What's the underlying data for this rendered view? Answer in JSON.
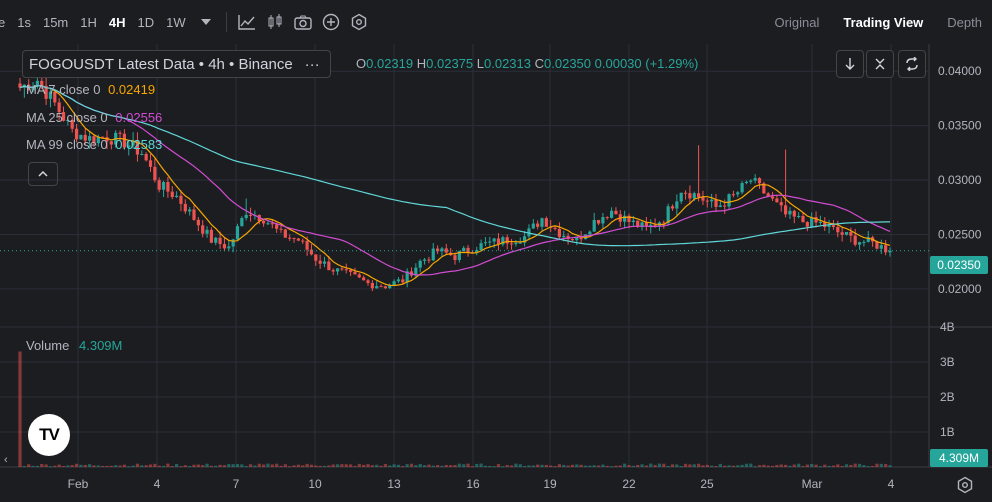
{
  "toolbar": {
    "timeframes": [
      "1s",
      "15m",
      "1H",
      "4H",
      "1D",
      "1W"
    ],
    "active_timeframe": "4H",
    "view_tabs": [
      "Original",
      "Trading View",
      "Depth"
    ],
    "active_view": "Trading View"
  },
  "legend": {
    "symbol_title": "FOGOUSDT Latest Data • 4h • Binance",
    "more_label": "···",
    "ohlc": {
      "open_label": "O",
      "open": "0.02319",
      "high_label": "H",
      "high": "0.02375",
      "low_label": "L",
      "low": "0.02313",
      "close_label": "C",
      "close": "0.02350",
      "change": "0.00030 (+1.29%)"
    },
    "ma7_label": "MA 7 close 0",
    "ma7_value": "0.02419",
    "ma25_label": "MA 25 close 0",
    "ma25_value": "0.02556",
    "ma99_label": "MA 99 close 0",
    "ma99_value": "0.02583",
    "volume_label": "Volume",
    "volume_value": "4.309M"
  },
  "price_tag": "0.02350",
  "volume_tag": "4.309M",
  "logo_text": "TV",
  "colors": {
    "background": "#1c1d21",
    "up": "#26a69a",
    "down": "#ef5350",
    "ma7": "#f7a600",
    "ma25": "#d24cd2",
    "ma99": "#5fd7d7",
    "grid": "#2a2e39"
  },
  "chart_data": {
    "type": "candlestick",
    "title": "FOGOUSDT Latest Data • 4h • Binance",
    "price_axis": {
      "ticks": [
        "0.04000",
        "0.03500",
        "0.03000",
        "0.02500",
        "0.02000"
      ],
      "range": [
        0.0165,
        0.0425
      ]
    },
    "volume_axis": {
      "ticks": [
        "4B",
        "3B",
        "2B",
        "1B"
      ],
      "range": [
        0,
        4
      ]
    },
    "x_ticks": [
      "Feb",
      "4",
      "7",
      "10",
      "13",
      "16",
      "19",
      "22",
      "25",
      "Mar",
      "4"
    ],
    "grid": true,
    "anchor_closes": [
      0.0385,
      0.0392,
      0.037,
      0.0345,
      0.0338,
      0.034,
      0.0335,
      0.0325,
      0.0295,
      0.0285,
      0.0265,
      0.0245,
      0.0238,
      0.0272,
      0.0265,
      0.025,
      0.0245,
      0.0228,
      0.0218,
      0.0212,
      0.0205,
      0.0203,
      0.0208,
      0.0225,
      0.0235,
      0.023,
      0.0238,
      0.0242,
      0.0245,
      0.0248,
      0.0265,
      0.0252,
      0.0245,
      0.0262,
      0.0272,
      0.0262,
      0.0255,
      0.0265,
      0.0292,
      0.0285,
      0.0275,
      0.0285,
      0.03,
      0.0285,
      0.0268,
      0.0262,
      0.026,
      0.0252,
      0.0245,
      0.0242,
      0.0235
    ],
    "anchor_highs_extra": {
      "39": 0.0332,
      "44": 0.0328,
      "13": 0.0283
    },
    "volume_spike_billions": 3.3,
    "candles_count": 201,
    "last_close": 0.0235,
    "ma_last": {
      "MA 7": 0.02419,
      "MA 25": 0.02556,
      "MA 99": 0.02583
    }
  }
}
